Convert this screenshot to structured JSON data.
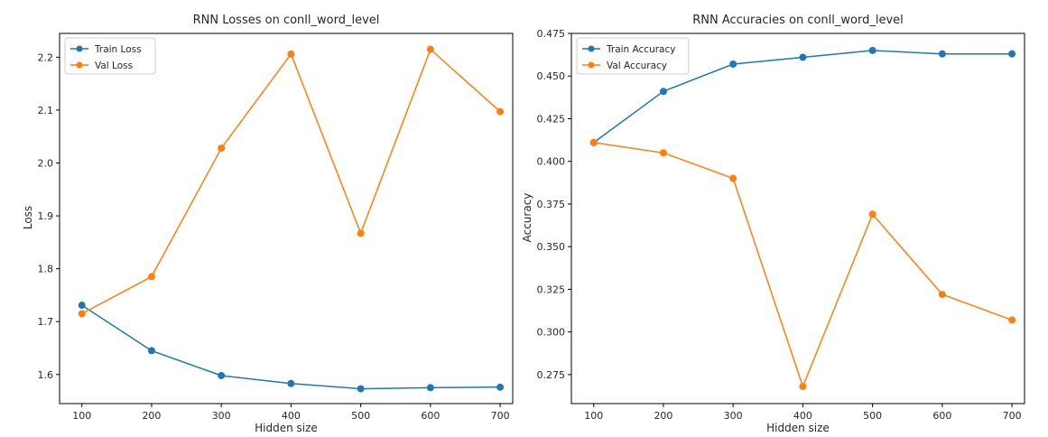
{
  "chart_data": [
    {
      "type": "line",
      "title": "RNN Losses on conll_word_level",
      "xlabel": "Hidden size",
      "ylabel": "Loss",
      "x": [
        100,
        200,
        300,
        400,
        500,
        600,
        700
      ],
      "xticks": [
        100,
        200,
        300,
        400,
        500,
        600,
        700
      ],
      "xlim": [
        68,
        718
      ],
      "yticks": [
        1.6,
        1.7,
        1.8,
        1.9,
        2.0,
        2.1,
        2.2
      ],
      "ytick_labels": [
        "1.6",
        "1.7",
        "1.8",
        "1.9",
        "2.0",
        "2.1",
        "2.2"
      ],
      "ylim": [
        1.545,
        2.245
      ],
      "grid": false,
      "legend_position": "top-left",
      "series": [
        {
          "name": "Train Loss",
          "color": "#1f77b4",
          "values": [
            1.731,
            1.645,
            1.598,
            1.583,
            1.573,
            1.575,
            1.576
          ]
        },
        {
          "name": "Val Loss",
          "color": "#ff7f0e",
          "values": [
            1.715,
            1.785,
            2.028,
            2.206,
            1.867,
            2.215,
            2.097
          ]
        }
      ]
    },
    {
      "type": "line",
      "title": "RNN Accuracies on conll_word_level",
      "xlabel": "Hidden size",
      "ylabel": "Accuracy",
      "x": [
        100,
        200,
        300,
        400,
        500,
        600,
        700
      ],
      "xticks": [
        100,
        200,
        300,
        400,
        500,
        600,
        700
      ],
      "xlim": [
        68,
        718
      ],
      "yticks": [
        0.275,
        0.3,
        0.325,
        0.35,
        0.375,
        0.4,
        0.425,
        0.45,
        0.475
      ],
      "ytick_labels": [
        "0.275",
        "0.300",
        "0.325",
        "0.350",
        "0.375",
        "0.400",
        "0.425",
        "0.450",
        "0.475"
      ],
      "ylim": [
        0.258,
        0.475
      ],
      "grid": false,
      "legend_position": "top-left",
      "series": [
        {
          "name": "Train Accuracy",
          "color": "#1f77b4",
          "values": [
            0.411,
            0.441,
            0.457,
            0.461,
            0.465,
            0.463,
            0.463
          ]
        },
        {
          "name": "Val Accuracy",
          "color": "#ff7f0e",
          "values": [
            0.411,
            0.405,
            0.39,
            0.268,
            0.369,
            0.322,
            0.307
          ]
        }
      ]
    }
  ]
}
